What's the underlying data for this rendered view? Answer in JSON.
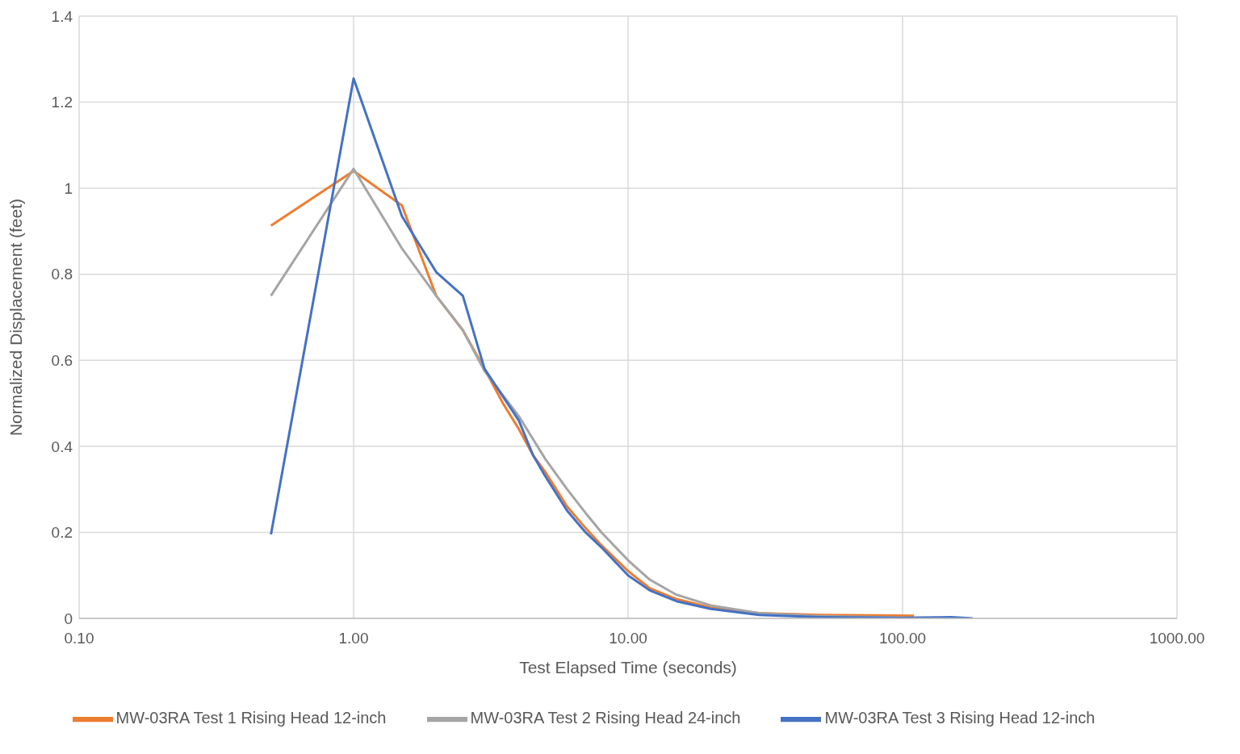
{
  "chart_data": {
    "type": "line",
    "xlabel": "Test Elapsed Time (seconds)",
    "ylabel": "Normalized Displacement (feet)",
    "log": "x",
    "grid": true,
    "legend": "bottom",
    "marker": "none",
    "line_style": "solid",
    "xlim": [
      0.1,
      1000
    ],
    "xticks": [
      {
        "value": 0.1,
        "label": "0.10"
      },
      {
        "value": 1,
        "label": "1.00"
      },
      {
        "value": 10,
        "label": "10.00"
      },
      {
        "value": 100,
        "label": "100.00"
      },
      {
        "value": 1000,
        "label": "1000.00"
      }
    ],
    "ylim": [
      0,
      1.4
    ],
    "yticks": [
      0,
      0.2,
      0.4,
      0.6,
      0.8,
      1,
      1.2,
      1.4
    ],
    "series": [
      {
        "name": "MW-03RA Test 1 Rising Head 12-inch",
        "color": "#ed7d31",
        "x": [
          0.5,
          1,
          1.5,
          2,
          2.5,
          3,
          3.5,
          4,
          4.5,
          5,
          6,
          7,
          8,
          10,
          12,
          15,
          20,
          30,
          50,
          80,
          110
        ],
        "values": [
          0.913,
          1.04,
          0.96,
          0.75,
          0.67,
          0.58,
          0.5,
          0.44,
          0.38,
          0.34,
          0.26,
          0.21,
          0.17,
          0.11,
          0.07,
          0.045,
          0.025,
          0.012,
          0.008,
          0.007,
          0.006
        ]
      },
      {
        "name": "MW-03RA Test 2 Rising Head 24-inch",
        "color": "#a5a5a5",
        "x": [
          0.5,
          1,
          1.5,
          2,
          2.5,
          3,
          4,
          5,
          6,
          7,
          8,
          10,
          12,
          15,
          20,
          30,
          50,
          100,
          170
        ],
        "values": [
          0.75,
          1.045,
          0.86,
          0.75,
          0.67,
          0.575,
          0.47,
          0.37,
          0.3,
          0.245,
          0.2,
          0.135,
          0.09,
          0.055,
          0.03,
          0.012,
          0.005,
          0.002,
          0.001
        ]
      },
      {
        "name": "MW-03RA Test 3 Rising Head 12-inch",
        "color": "#4472c4",
        "x": [
          0.5,
          1,
          1.5,
          2,
          2.5,
          3,
          4,
          4.5,
          5,
          6,
          7,
          8,
          10,
          12,
          15,
          20,
          30,
          50,
          100,
          150,
          180
        ],
        "values": [
          0.195,
          1.255,
          0.935,
          0.805,
          0.75,
          0.58,
          0.46,
          0.38,
          0.33,
          0.25,
          0.2,
          0.165,
          0.1,
          0.065,
          0.04,
          0.022,
          0.008,
          0.003,
          0.001,
          0.003,
          0
        ]
      }
    ]
  }
}
